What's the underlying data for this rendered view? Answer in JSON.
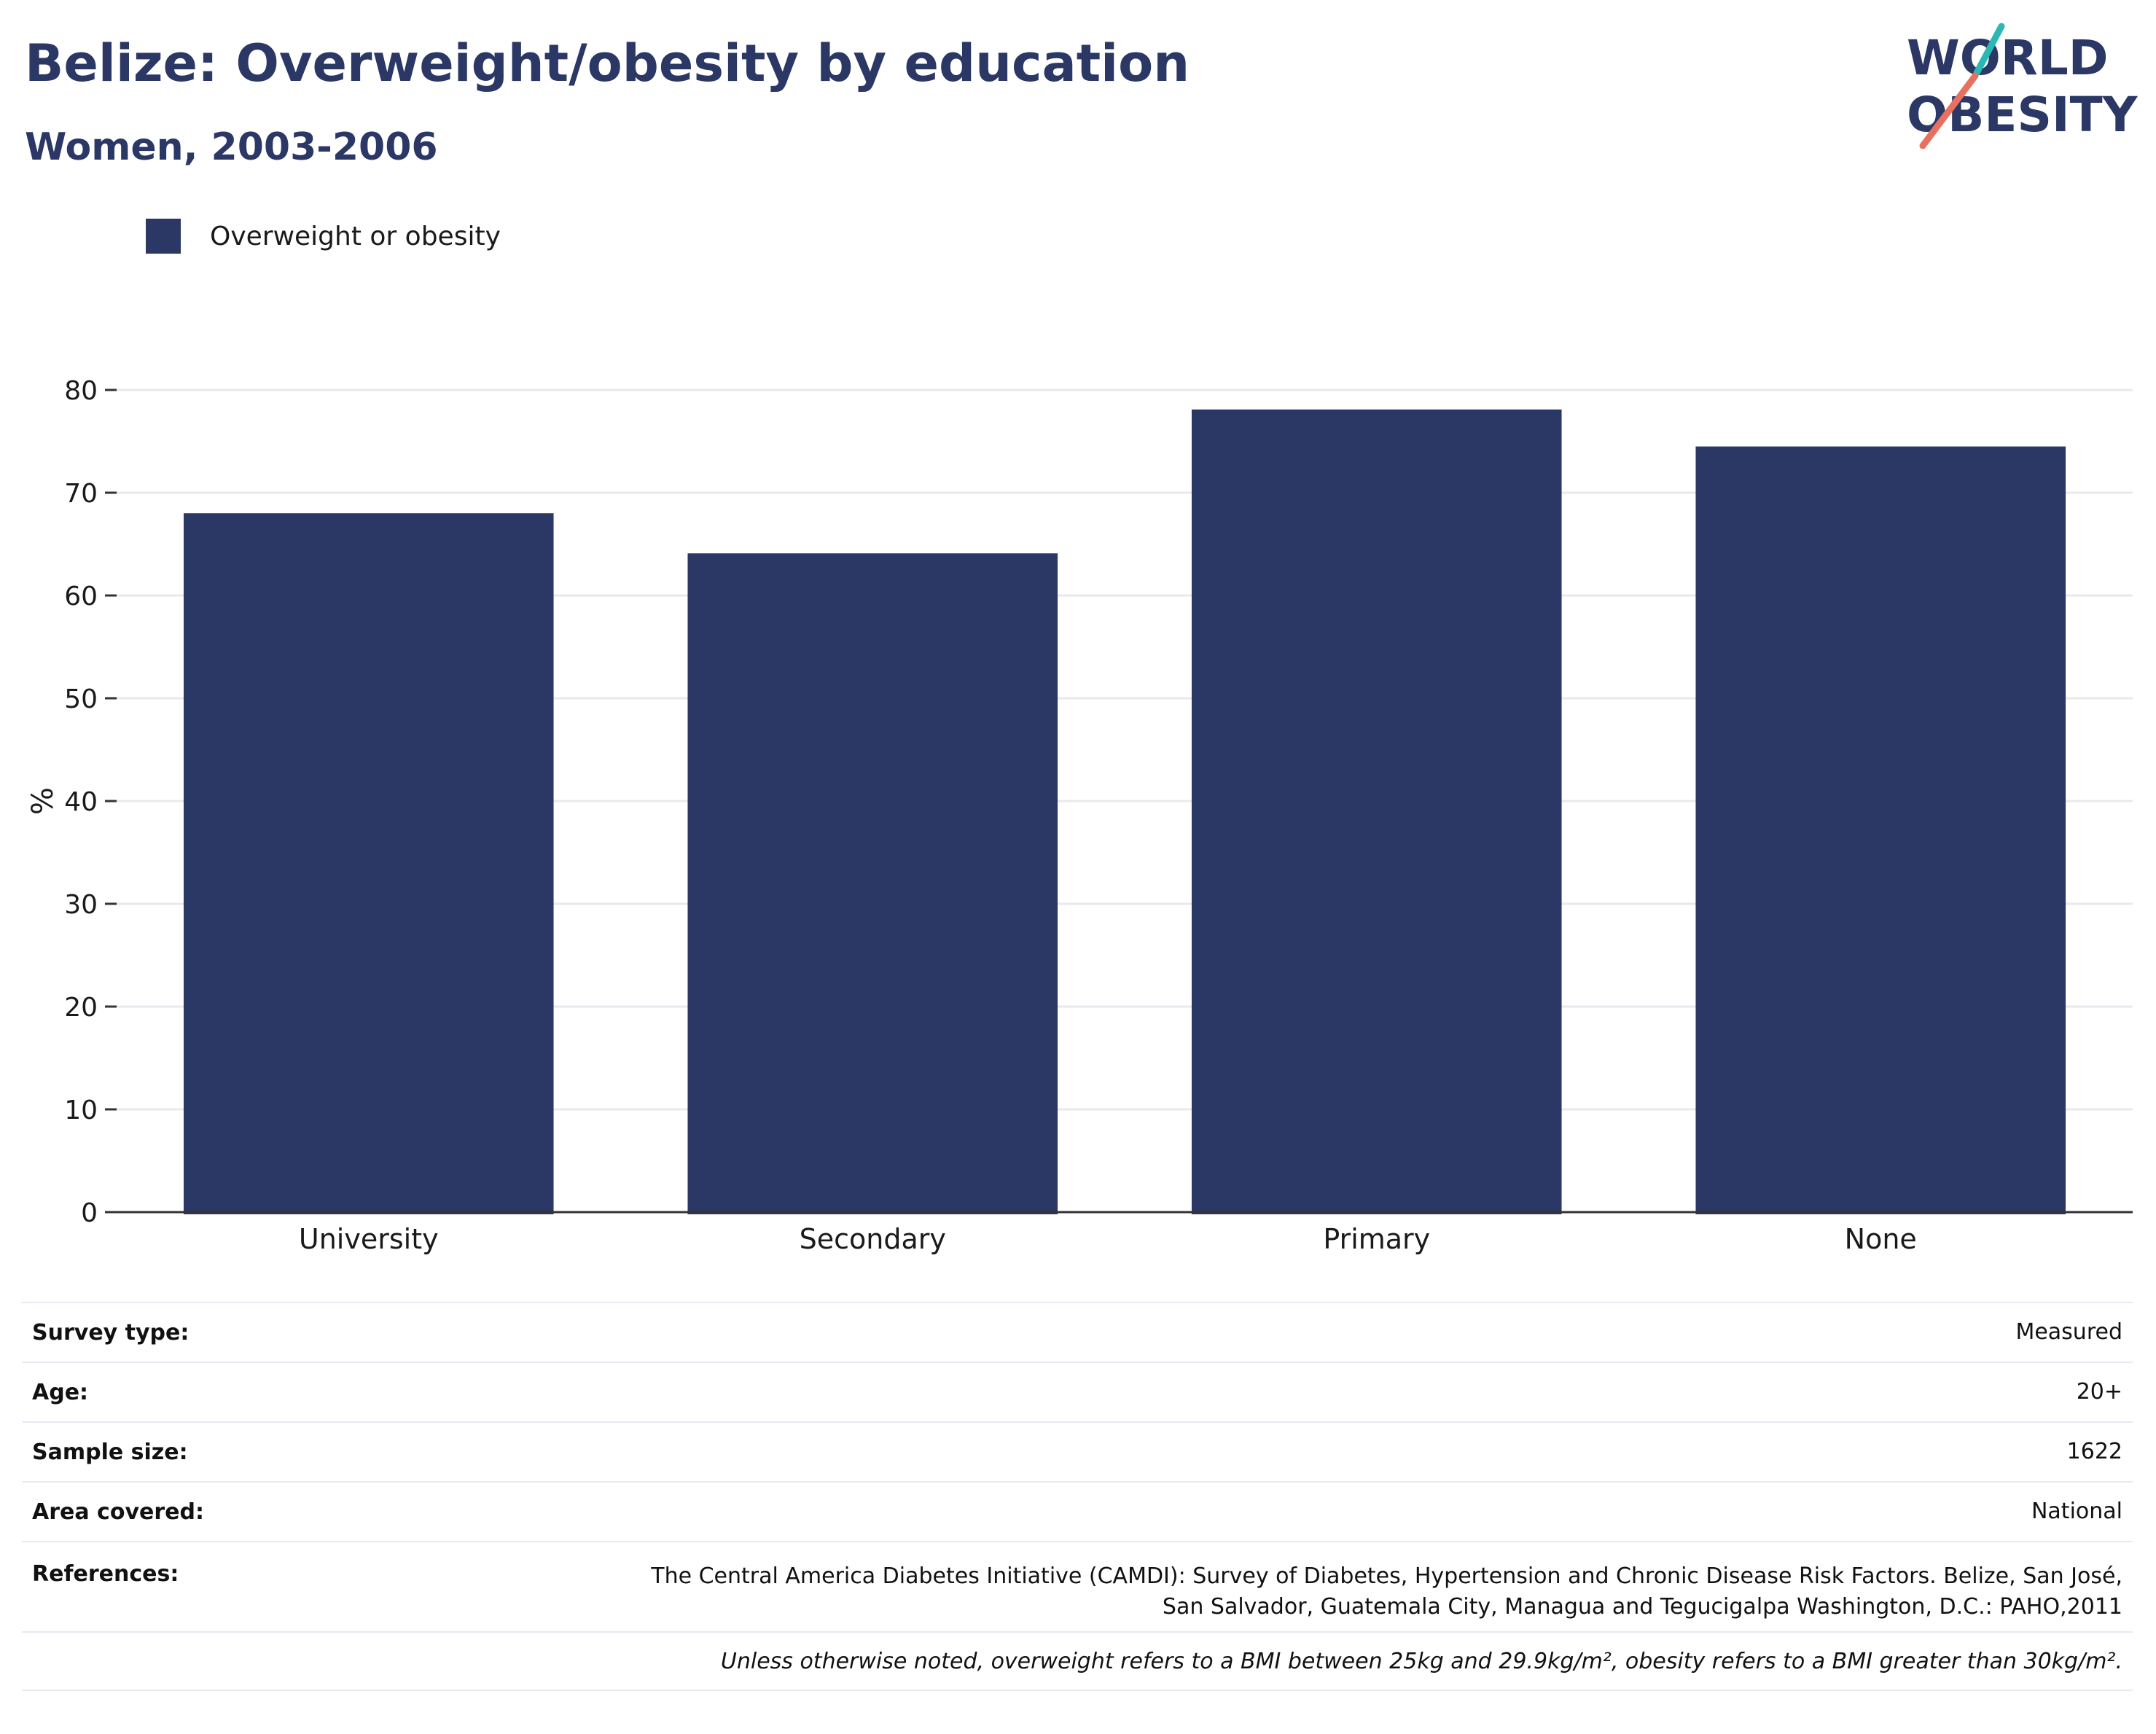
{
  "header": {
    "title": "Belize: Overweight/obesity by education",
    "subtitle": "Women, 2003-2006"
  },
  "logo": {
    "line1": "WORLD",
    "line2": "OBESITY",
    "colors": {
      "text": "#2b3764",
      "teal": "#2bb7b3",
      "coral": "#e8705f"
    }
  },
  "legend": {
    "label": "Overweight or obesity",
    "color": "#2b3764"
  },
  "chart_data": {
    "type": "bar",
    "categories": [
      "University",
      "Secondary",
      "Primary",
      "None"
    ],
    "series": [
      {
        "name": "Overweight or obesity",
        "values": [
          68.0,
          64.1,
          78.1,
          74.5
        ],
        "color": "#2b3764"
      }
    ],
    "xlabel": "",
    "ylabel": "%",
    "ylim": [
      0,
      80
    ],
    "yticks": [
      0,
      10,
      20,
      30,
      40,
      50,
      60,
      70,
      80
    ],
    "grid": true,
    "legend_position": "top-left"
  },
  "info": {
    "rows": [
      {
        "label": "Survey type:",
        "value": "Measured"
      },
      {
        "label": "Age:",
        "value": "20+"
      },
      {
        "label": "Sample size:",
        "value": "1622"
      },
      {
        "label": "Area covered:",
        "value": "National"
      }
    ],
    "references": {
      "label": "References:",
      "line1": "The Central America Diabetes Initiative (CAMDI): Survey of Diabetes, Hypertension and Chronic Disease Risk Factors. Belize, San José,",
      "line2": "San Salvador, Guatemala City, Managua and Tegucigalpa Washington, D.C.: PAHO,2011"
    },
    "note": "Unless otherwise noted, overweight refers to a BMI between 25kg and 29.9kg/m², obesity refers to a BMI greater than 30kg/m²."
  }
}
